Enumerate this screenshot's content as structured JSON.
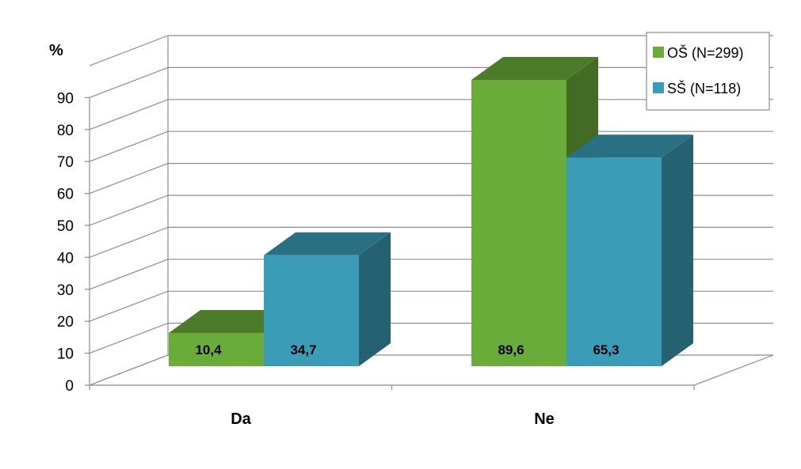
{
  "chart_data": {
    "type": "bar",
    "ylabel": "%",
    "ylim": [
      0,
      90
    ],
    "yticks": [
      0,
      10,
      20,
      30,
      40,
      50,
      60,
      70,
      80,
      90
    ],
    "categories": [
      "Da",
      "Ne"
    ],
    "series": [
      {
        "name": "OŠ (N=299)",
        "values": [
          10.4,
          89.6
        ],
        "labels": [
          "10,4",
          "89,6"
        ],
        "color": "#6aac3a"
      },
      {
        "name": "SŠ (N=118)",
        "values": [
          34.7,
          65.3
        ],
        "labels": [
          "34,7",
          "65,3"
        ],
        "color": "#3a9cb6"
      }
    ],
    "grid": true,
    "legend_position": "top-right",
    "style": "3d-bar"
  }
}
